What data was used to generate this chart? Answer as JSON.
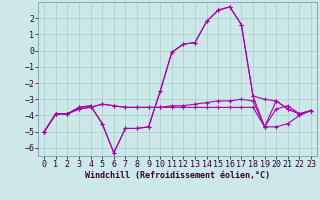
{
  "xlabel": "Windchill (Refroidissement éolien,°C)",
  "background_color": "#cce8e8",
  "grid_color": "#aacccc",
  "line_color": "#aa00aa",
  "x_hours": [
    0,
    1,
    2,
    3,
    4,
    5,
    6,
    7,
    8,
    9,
    10,
    11,
    12,
    13,
    14,
    15,
    16,
    17,
    18,
    19,
    20,
    21,
    22,
    23
  ],
  "series1": [
    -5.0,
    -3.9,
    -3.9,
    -3.5,
    -3.4,
    -4.5,
    -6.3,
    -4.8,
    -4.8,
    -4.7,
    -2.5,
    -0.1,
    0.4,
    0.5,
    1.8,
    2.5,
    2.7,
    1.6,
    -2.8,
    -3.0,
    -3.1,
    -3.6,
    -3.9,
    -3.7
  ],
  "series2": [
    -5.0,
    -3.9,
    -3.9,
    -3.5,
    -3.4,
    -4.5,
    -6.3,
    -4.8,
    -4.8,
    -4.7,
    -2.5,
    -0.1,
    0.4,
    0.5,
    1.8,
    2.5,
    2.7,
    1.6,
    -2.8,
    -4.7,
    -3.1,
    -3.6,
    -3.9,
    -3.7
  ],
  "series3": [
    -5.0,
    -3.9,
    -3.9,
    -3.6,
    -3.5,
    -3.3,
    -3.4,
    -3.5,
    -3.5,
    -3.5,
    -3.5,
    -3.4,
    -3.4,
    -3.3,
    -3.2,
    -3.1,
    -3.1,
    -3.0,
    -3.1,
    -4.7,
    -3.6,
    -3.4,
    -3.9,
    -3.7
  ],
  "series4": [
    -5.0,
    -3.9,
    -3.9,
    -3.6,
    -3.5,
    -3.3,
    -3.4,
    -3.5,
    -3.5,
    -3.5,
    -3.5,
    -3.5,
    -3.5,
    -3.5,
    -3.5,
    -3.5,
    -3.5,
    -3.5,
    -3.5,
    -4.7,
    -4.7,
    -4.5,
    -4.0,
    -3.7
  ],
  "ylim": [
    -6.5,
    3.0
  ],
  "yticks": [
    -6,
    -5,
    -4,
    -3,
    -2,
    -1,
    0,
    1,
    2
  ],
  "xticks": [
    0,
    1,
    2,
    3,
    4,
    5,
    6,
    7,
    8,
    9,
    10,
    11,
    12,
    13,
    14,
    15,
    16,
    17,
    18,
    19,
    20,
    21,
    22,
    23
  ],
  "tick_fontsize": 6,
  "xlabel_fontsize": 6,
  "marker_size": 3,
  "linewidth": 0.8
}
